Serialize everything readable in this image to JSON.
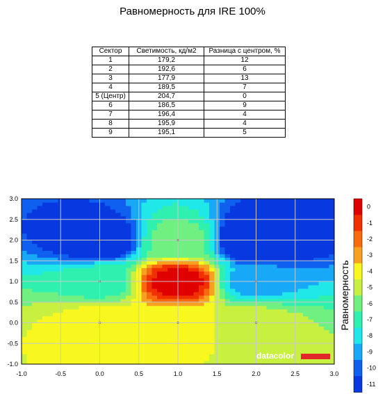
{
  "title": "Равномерность для IRE 100%",
  "table": {
    "headers": [
      "Сектор",
      "Светимость, кд/м2",
      "Разница с центром, %"
    ],
    "rows": [
      [
        "1",
        "179,2",
        "12"
      ],
      [
        "2",
        "192,6",
        "6"
      ],
      [
        "3",
        "177,9",
        "13"
      ],
      [
        "4",
        "189,5",
        "7"
      ],
      [
        "5 (Центр)",
        "204,7",
        "0"
      ],
      [
        "6",
        "186,5",
        "9"
      ],
      [
        "7",
        "196,4",
        "4"
      ],
      [
        "8",
        "195,9",
        "4"
      ],
      [
        "9",
        "195,1",
        "5"
      ]
    ]
  },
  "chart_data": {
    "type": "heatmap",
    "title": "Равномерность для IRE 100%",
    "xlim": [
      -1.0,
      3.0
    ],
    "ylim": [
      -1.0,
      3.0
    ],
    "x_ticks": [
      "-1.0",
      "-0.5",
      "0.0",
      "0.5",
      "1.0",
      "1.5",
      "2.0",
      "2.5",
      "3.0"
    ],
    "y_ticks": [
      "-1.0",
      "-0.5",
      "0.0",
      "0.5",
      "1.0",
      "1.5",
      "2.0",
      "2.5",
      "3.0"
    ],
    "grid": true,
    "colorbar": {
      "label": "Равномерность",
      "levels": [
        "0",
        "-1",
        "-2",
        "-3",
        "-4",
        "-5",
        "-6",
        "-7",
        "-8",
        "-9",
        "-10",
        "-11"
      ],
      "colors": [
        "#e00000",
        "#f03000",
        "#f86a10",
        "#f8a020",
        "#f8f820",
        "#c8f040",
        "#70f080",
        "#30f0b0",
        "#20e8e8",
        "#18a8f8",
        "#1060f0",
        "#0838e0"
      ]
    },
    "sectors": [
      {
        "sector": "1",
        "x": 0,
        "y": 2,
        "diff_percent": -12
      },
      {
        "sector": "2",
        "x": 1,
        "y": 2,
        "diff_percent": -6
      },
      {
        "sector": "3",
        "x": 2,
        "y": 2,
        "diff_percent": -13
      },
      {
        "sector": "4",
        "x": 0,
        "y": 1,
        "diff_percent": -7
      },
      {
        "sector": "5 (Центр)",
        "x": 1,
        "y": 1,
        "diff_percent": 0
      },
      {
        "sector": "6",
        "x": 2,
        "y": 1,
        "diff_percent": -9
      },
      {
        "sector": "7",
        "x": 0,
        "y": 0,
        "diff_percent": -4
      },
      {
        "sector": "8",
        "x": 1,
        "y": 0,
        "diff_percent": -4
      },
      {
        "sector": "9",
        "x": 2,
        "y": 0,
        "diff_percent": -5
      }
    ],
    "watermark": "datacolor"
  }
}
